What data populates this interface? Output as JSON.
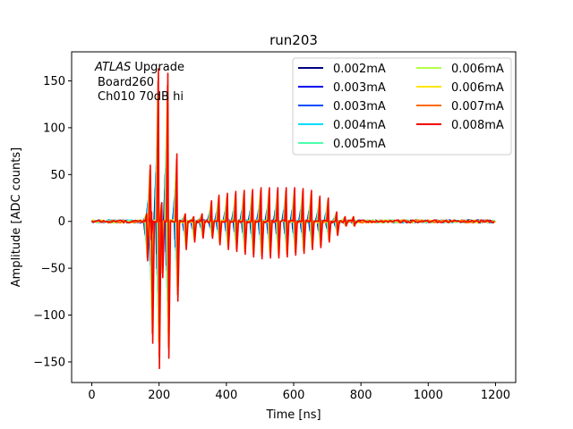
{
  "chart_data": {
    "type": "line",
    "title": "run203",
    "xlabel": "Time [ns]",
    "ylabel": "Amplitude [ADC counts]",
    "xlim": [
      -60,
      1260
    ],
    "ylim": [
      -172,
      181
    ],
    "xticks": [
      0,
      200,
      400,
      600,
      800,
      1000,
      1200
    ],
    "yticks": [
      -150,
      -100,
      -50,
      0,
      50,
      100,
      150
    ],
    "annotation": {
      "italic": "ATLAS",
      "suffix": " Upgrade",
      "lines": [
        "Board260",
        "Ch010 70dB hi"
      ]
    },
    "legend": {
      "location": "upper right",
      "columns": 2
    },
    "series": [
      {
        "name": "0.002mA",
        "color": "#00007f",
        "scale": 0.22
      },
      {
        "name": "0.003mA",
        "color": "#0000f1",
        "scale": 0.32
      },
      {
        "name": "0.003mA",
        "color": "#004cff",
        "scale": 0.36
      },
      {
        "name": "0.004mA",
        "color": "#00dcfe",
        "scale": 0.48
      },
      {
        "name": "0.005mA",
        "color": "#4affad",
        "scale": 0.58
      },
      {
        "name": "0.006mA",
        "color": "#b3ff49",
        "scale": 0.7
      },
      {
        "name": "0.006mA",
        "color": "#ffe500",
        "scale": 0.82
      },
      {
        "name": "0.007mA",
        "color": "#ff6800",
        "scale": 0.92
      },
      {
        "name": "0.008mA",
        "color": "#f10700",
        "scale": 1.0
      }
    ],
    "pulses": [
      {
        "t": 165,
        "pos": 8,
        "neg": -42
      },
      {
        "t": 176,
        "pos": 60,
        "neg": -20
      },
      {
        "t": 180,
        "pos": 10,
        "neg": -130
      },
      {
        "t": 200,
        "pos": 163,
        "neg": -157
      },
      {
        "t": 210,
        "pos": 20,
        "neg": -60
      },
      {
        "t": 228,
        "pos": 158,
        "neg": -146
      },
      {
        "t": 255,
        "pos": 72,
        "neg": -85
      },
      {
        "t": 280,
        "pos": 8,
        "neg": -30
      },
      {
        "t": 305,
        "pos": 5,
        "neg": -22
      },
      {
        "t": 330,
        "pos": 8,
        "neg": -18
      },
      {
        "t": 358,
        "pos": 22,
        "neg": -18
      },
      {
        "t": 380,
        "pos": 28,
        "neg": -25
      },
      {
        "t": 405,
        "pos": 30,
        "neg": -30
      },
      {
        "t": 430,
        "pos": 32,
        "neg": -32
      },
      {
        "t": 455,
        "pos": 33,
        "neg": -35
      },
      {
        "t": 480,
        "pos": 34,
        "neg": -38
      },
      {
        "t": 505,
        "pos": 36,
        "neg": -40
      },
      {
        "t": 530,
        "pos": 36,
        "neg": -39
      },
      {
        "t": 555,
        "pos": 36,
        "neg": -39
      },
      {
        "t": 580,
        "pos": 36,
        "neg": -38
      },
      {
        "t": 605,
        "pos": 36,
        "neg": -36
      },
      {
        "t": 630,
        "pos": 35,
        "neg": -34
      },
      {
        "t": 655,
        "pos": 33,
        "neg": -30
      },
      {
        "t": 680,
        "pos": 27,
        "neg": -28
      },
      {
        "t": 705,
        "pos": 25,
        "neg": -22
      },
      {
        "t": 730,
        "pos": 10,
        "neg": -15
      },
      {
        "t": 755,
        "pos": 5,
        "neg": -5
      },
      {
        "t": 780,
        "pos": 5,
        "neg": -5
      }
    ]
  }
}
